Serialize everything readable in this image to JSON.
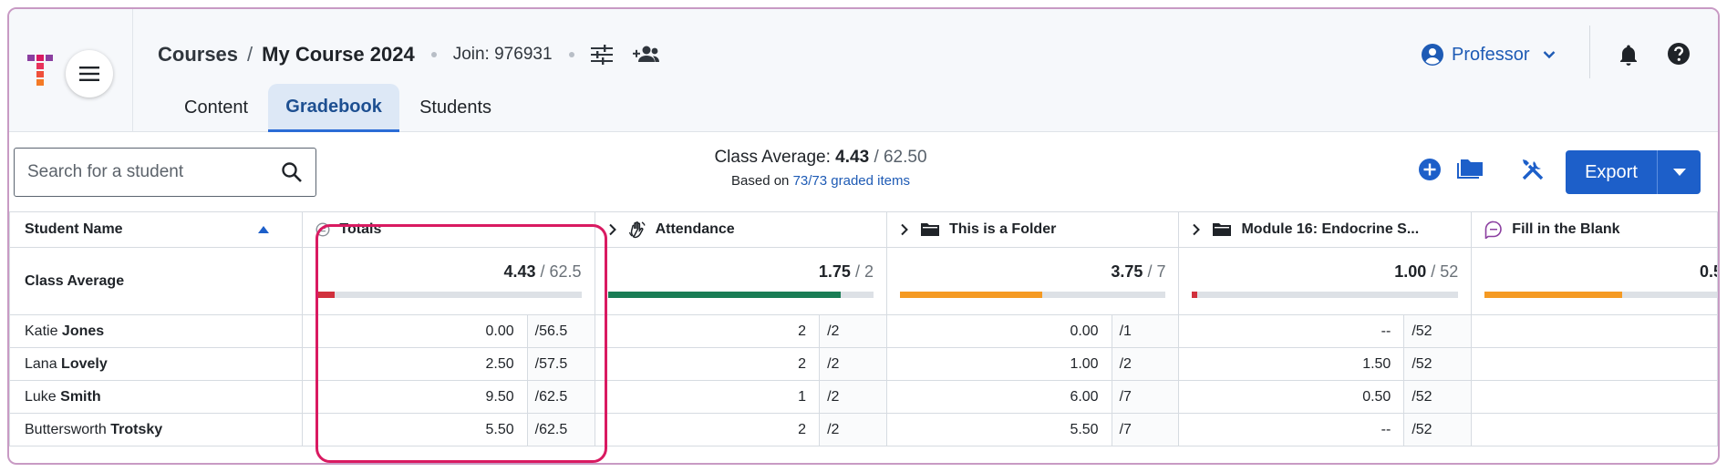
{
  "header": {
    "breadcrumb": {
      "root": "Courses",
      "separator": "/",
      "current": "My Course 2024"
    },
    "join_label": "Join: 976931",
    "tabs": [
      {
        "label": "Content",
        "active": false
      },
      {
        "label": "Gradebook",
        "active": true
      },
      {
        "label": "Students",
        "active": false
      }
    ],
    "profile_label": "Professor"
  },
  "toolbar": {
    "search_placeholder": "Search for a student",
    "class_average_label": "Class Average:",
    "class_average_value": "4.43",
    "class_average_total": "/ 62.50",
    "based_on_prefix": "Based on",
    "based_on_link": "73/73 graded items",
    "export_label": "Export"
  },
  "table": {
    "name_header": "Student Name",
    "columns": [
      {
        "title": "Totals",
        "icon": "totals-icon"
      },
      {
        "title": "Attendance",
        "icon": "hand-wave-icon"
      },
      {
        "title": "This is a Folder",
        "icon": "folder-icon"
      },
      {
        "title": "Module 16: Endocrine S...",
        "icon": "folder-icon"
      },
      {
        "title": "Fill in the Blank",
        "icon": "fill-blank-icon"
      }
    ],
    "average_row": {
      "label": "Class Average",
      "cells": [
        {
          "value": "4.43",
          "total": "/ 62.5",
          "fraction": 0.071,
          "color": "#d1313d"
        },
        {
          "value": "1.75",
          "total": "/ 2",
          "fraction": 0.875,
          "color": "#1a7d55"
        },
        {
          "value": "3.75",
          "total": "/ 7",
          "fraction": 0.536,
          "color": "#f59a23"
        },
        {
          "value": "1.00",
          "total": "/ 52",
          "fraction": 0.019,
          "color": "#d1313d"
        },
        {
          "value": "0.5",
          "total": "",
          "fraction": 0.55,
          "color": "#f59a23"
        }
      ]
    },
    "students": [
      {
        "first": "Katie",
        "last": "Jones",
        "scores": [
          [
            "0.00",
            "/56.5"
          ],
          [
            "2",
            "/2"
          ],
          [
            "0.00",
            "/1"
          ],
          [
            "--",
            "/52"
          ]
        ]
      },
      {
        "first": "Lana",
        "last": "Lovely",
        "scores": [
          [
            "2.50",
            "/57.5"
          ],
          [
            "2",
            "/2"
          ],
          [
            "1.00",
            "/2"
          ],
          [
            "1.50",
            "/52"
          ]
        ]
      },
      {
        "first": "Luke",
        "last": "Smith",
        "scores": [
          [
            "9.50",
            "/62.5"
          ],
          [
            "1",
            "/2"
          ],
          [
            "6.00",
            "/7"
          ],
          [
            "0.50",
            "/52"
          ]
        ]
      },
      {
        "first": "Buttersworth",
        "last": "Trotsky",
        "scores": [
          [
            "5.50",
            "/62.5"
          ],
          [
            "2",
            "/2"
          ],
          [
            "5.50",
            "/7"
          ],
          [
            "--",
            "/52"
          ]
        ]
      }
    ]
  }
}
